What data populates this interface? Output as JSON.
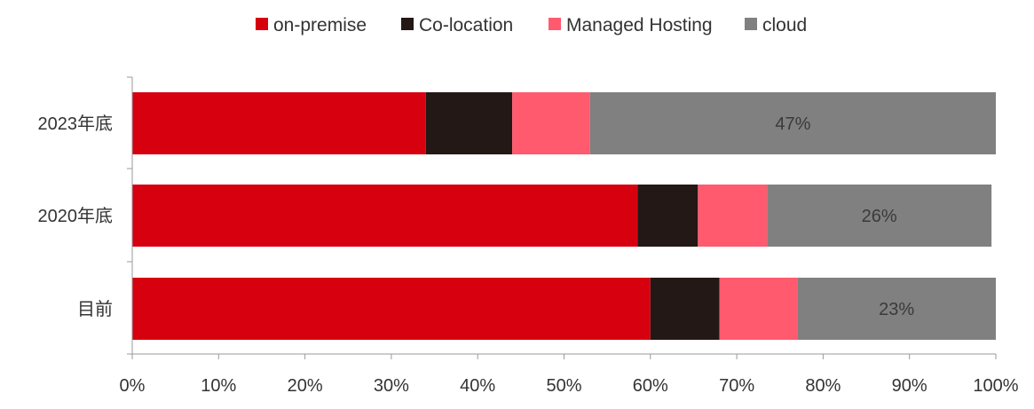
{
  "chart_data": {
    "type": "bar",
    "orientation": "horizontal",
    "stacked": true,
    "normalized": true,
    "categories": [
      "2023年底",
      "2020年底",
      "目前"
    ],
    "series": [
      {
        "name": "on-premise",
        "color": "#d7000f",
        "values": [
          34,
          58.5,
          60
        ]
      },
      {
        "name": "Co-location",
        "color": "#231815",
        "values": [
          10,
          7,
          8
        ]
      },
      {
        "name": "Managed Hosting",
        "color": "#ff5a6e",
        "values": [
          9,
          8,
          9
        ]
      },
      {
        "name": "cloud",
        "color": "#808080",
        "values": [
          47,
          26,
          23
        ]
      }
    ],
    "data_labels": [
      {
        "series": "cloud",
        "category": "2023年底",
        "text": "47%"
      },
      {
        "series": "cloud",
        "category": "2020年底",
        "text": "26%"
      },
      {
        "series": "cloud",
        "category": "目前",
        "text": "23%"
      }
    ],
    "x_ticks": [
      "0%",
      "10%",
      "20%",
      "30%",
      "40%",
      "50%",
      "60%",
      "70%",
      "80%",
      "90%",
      "100%"
    ],
    "xlim": [
      0,
      100
    ],
    "title": "",
    "xlabel": "",
    "ylabel": "",
    "grid": false,
    "legend_position": "top"
  }
}
